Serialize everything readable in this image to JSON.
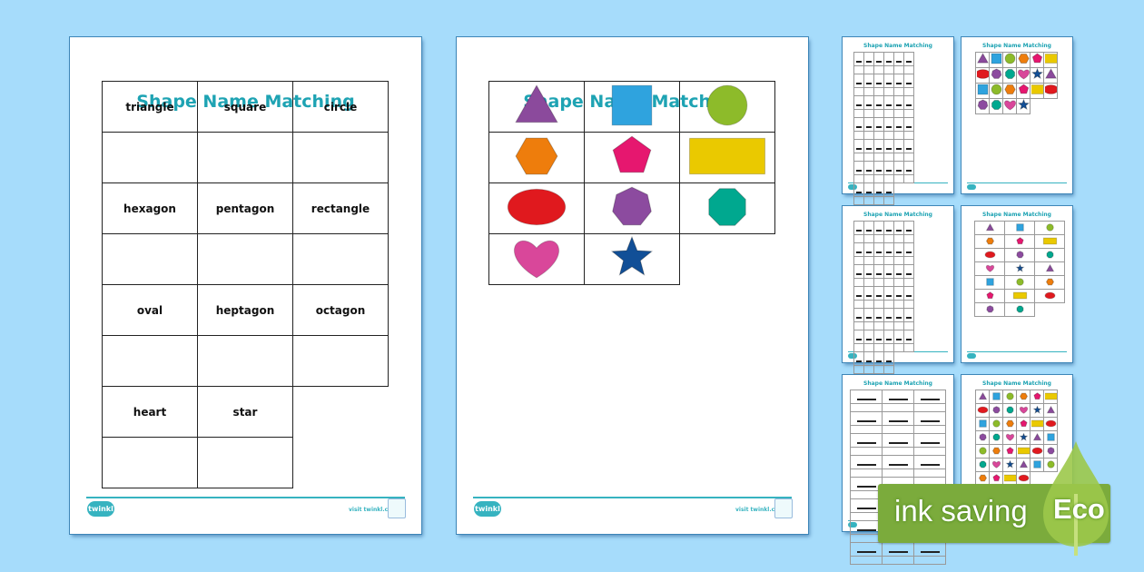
{
  "title": "Shape Name Matching",
  "labels_page": {
    "rows": [
      [
        "triangle",
        "square",
        "circle"
      ],
      [
        "hexagon",
        "pentagon",
        "rectangle"
      ],
      [
        "oval",
        "heptagon",
        "octagon"
      ],
      [
        "heart",
        "star"
      ]
    ]
  },
  "shapes_page": {
    "rows": [
      [
        {
          "shape": "triangle",
          "color": "#8b4a9c"
        },
        {
          "shape": "square",
          "color": "#2fa3de"
        },
        {
          "shape": "circle",
          "color": "#8dbb2a"
        }
      ],
      [
        {
          "shape": "hexagon",
          "color": "#ee7d0c"
        },
        {
          "shape": "pentagon",
          "color": "#e6176f"
        },
        {
          "shape": "rectangle",
          "color": "#eac900"
        }
      ],
      [
        {
          "shape": "oval",
          "color": "#e0191e"
        },
        {
          "shape": "heptagon",
          "color": "#8c4b9f"
        },
        {
          "shape": "octagon",
          "color": "#00a88f"
        }
      ],
      [
        {
          "shape": "heart",
          "color": "#d9479a"
        },
        {
          "shape": "star",
          "color": "#114f97"
        }
      ]
    ]
  },
  "footer": {
    "logo": "twinkl",
    "visit": "visit twinkl.com"
  },
  "thumbnails": [
    {
      "title": "Shape Name Matching",
      "kind": "labels",
      "cols": 6
    },
    {
      "title": "Shape Name Matching",
      "kind": "shapes",
      "cols": 6
    },
    {
      "title": "Shape Name Matching",
      "kind": "labels",
      "cols": 6
    },
    {
      "title": "Shape Name Matching",
      "kind": "shapes",
      "cols": 3
    },
    {
      "title": "Shape Name Matching",
      "kind": "labels",
      "cols": 3
    },
    {
      "title": "Shape Name Matching",
      "kind": "shapes",
      "cols": 6
    }
  ],
  "eco_badge": {
    "text": "ink saving",
    "word": "Eco",
    "color": "#7bab3c"
  }
}
